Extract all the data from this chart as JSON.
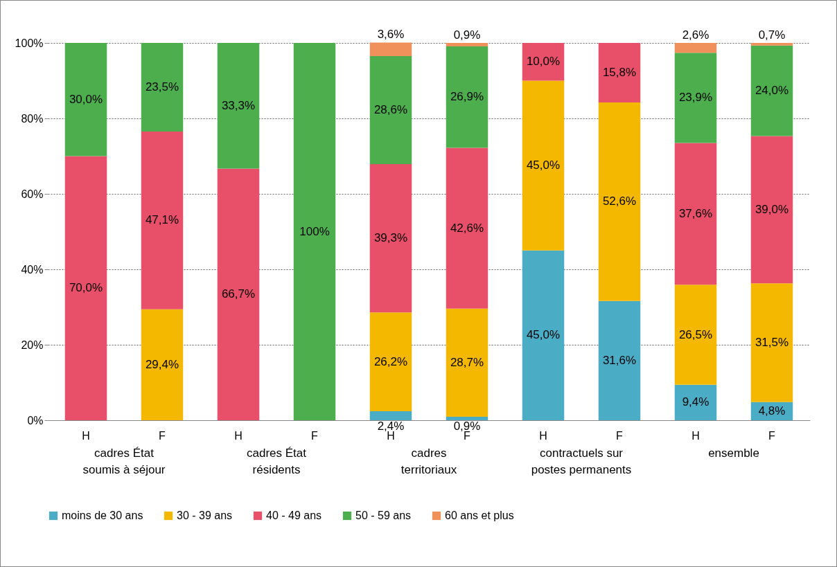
{
  "chart_data": {
    "type": "bar",
    "stacked": true,
    "categories": [
      "H",
      "F",
      "H",
      "F",
      "H",
      "F",
      "H",
      "F",
      "H",
      "F"
    ],
    "annotations": [
      "cadres État soumis à séjour",
      "cadres État résidents",
      "cadres territoriaux",
      "contractuels sur postes permanents",
      "ensemble"
    ],
    "series": [
      {
        "name": "moins de 30 ans",
        "color": "#4bacc6",
        "values": [
          null,
          null,
          null,
          null,
          2.4,
          0.9,
          45.0,
          31.6,
          9.4,
          4.8
        ],
        "value_labels": [
          null,
          null,
          null,
          null,
          "2,4%",
          "0,9%",
          "45,0%",
          "31,6%",
          "9,4%",
          "4,8%"
        ]
      },
      {
        "name": "30 - 39 ans",
        "color": "#f5b800",
        "values": [
          null,
          29.4,
          null,
          null,
          26.2,
          28.7,
          45.0,
          52.6,
          26.5,
          31.5
        ],
        "value_labels": [
          null,
          "29,4%",
          null,
          null,
          "26,2%",
          "28,7%",
          "45,0%",
          "52,6%",
          "26,5%",
          "31,5%"
        ]
      },
      {
        "name": "40 - 49 ans",
        "color": "#e8506a",
        "values": [
          70.0,
          47.1,
          66.7,
          null,
          39.3,
          42.6,
          10.0,
          15.8,
          37.6,
          39.0
        ],
        "value_labels": [
          "70,0%",
          "47,1%",
          "66,7%",
          null,
          "39,3%",
          "42,6%",
          "10,0%",
          "15,8%",
          "37,6%",
          "39,0%"
        ]
      },
      {
        "name": "50 - 59 ans",
        "color": "#4cae4c",
        "values": [
          30.0,
          23.5,
          33.3,
          100,
          28.6,
          26.9,
          null,
          null,
          23.9,
          24.0
        ],
        "value_labels": [
          "30,0%",
          "23,5%",
          "33,3%",
          "100%",
          "28,6%",
          "26,9%",
          null,
          null,
          "23,9%",
          "24,0%"
        ]
      },
      {
        "name": "60 ans et plus",
        "color": "#f0905a",
        "values": [
          null,
          null,
          null,
          null,
          3.6,
          0.9,
          null,
          null,
          2.6,
          0.7
        ],
        "value_labels": [
          null,
          null,
          null,
          null,
          "3,6%",
          "0,9%",
          null,
          null,
          "2,6%",
          "0,7%"
        ]
      }
    ],
    "ylim": [
      0,
      100
    ],
    "yticks": [
      {
        "value": 0,
        "label": "0%"
      },
      {
        "value": 20,
        "label": "20%"
      },
      {
        "value": 40,
        "label": "40%"
      },
      {
        "value": 60,
        "label": "60%"
      },
      {
        "value": 80,
        "label": "80%"
      },
      {
        "value": 100,
        "label": "100%"
      }
    ],
    "grid": "y",
    "legend": "bottom"
  }
}
